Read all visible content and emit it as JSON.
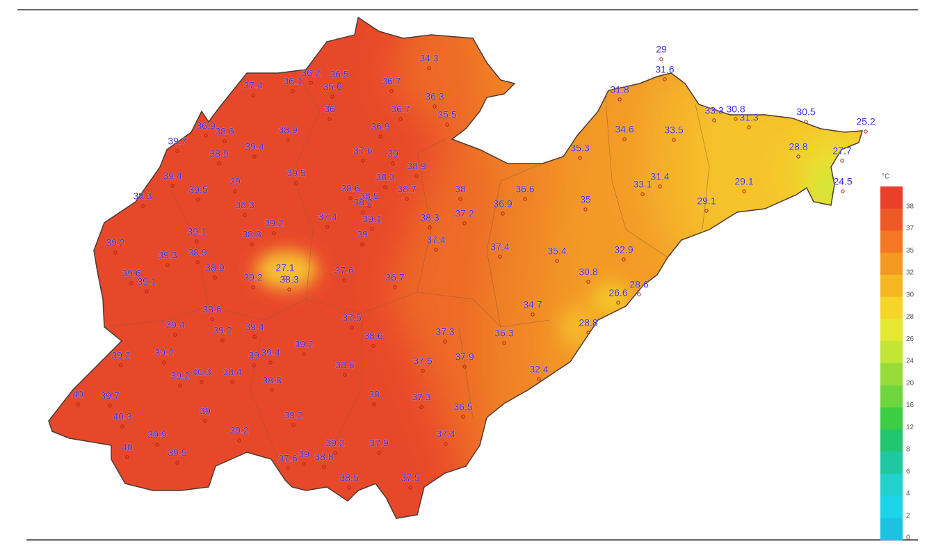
{
  "temperatures": [
    36.2,
    36.5,
    37.4,
    36.1,
    35.6,
    36.7,
    34.3,
    36.3,
    36,
    36.7,
    35.5,
    36.9,
    38.6,
    38.9,
    36.9,
    39.7,
    38.9,
    39.4,
    37.6,
    39,
    38.9,
    35.3,
    31.8,
    29,
    31.6,
    33.3,
    30.8,
    31.3,
    30.5,
    25.2,
    34.6,
    33.5,
    28.8,
    27.7,
    39.4,
    39.5,
    38.3,
    39.5,
    39,
    38.6,
    38.7,
    38,
    36.6,
    33.1,
    31.4,
    29.1,
    24.5,
    38.3,
    38.5,
    38.3,
    38.2,
    35,
    29.1,
    36.9,
    37.4,
    39.1,
    38.3,
    37.2,
    39.2,
    39.1,
    38.8,
    39,
    39.2,
    38.9,
    37.4,
    37.4,
    35.4,
    32.9,
    39.3,
    38.9,
    27.1,
    37.6,
    39.6,
    39.1,
    39.2,
    38.3,
    36.7,
    30.8,
    28.6,
    26.6,
    38.6,
    34.7,
    37.5,
    28.8,
    39.4,
    39.2,
    39.4,
    37.3,
    36.3,
    38.6,
    39.2,
    39.2,
    39.2,
    39.4,
    39,
    37.6,
    37.9,
    38.6,
    32.4,
    39.2,
    40.3,
    38.4,
    38.8,
    40,
    39.7,
    38,
    37.3,
    40.3,
    39,
    36.5,
    39.2,
    39.9,
    39.2,
    37.4,
    40,
    39.5,
    39.2,
    37.9,
    37.6,
    39,
    38.8,
    38.5,
    37.5
  ],
  "legend": {
    "unit": "°C",
    "ticks": [
      38,
      37,
      35,
      32,
      30,
      28,
      26,
      24,
      20,
      16,
      12,
      8,
      6,
      4,
      2,
      0
    ],
    "colors": [
      "#e8402a",
      "#ee5a26",
      "#f27822",
      "#f49a22",
      "#f5b822",
      "#f5d52a",
      "#e4e832",
      "#c2e636",
      "#98dc3a",
      "#6cd63c",
      "#3ccd42",
      "#22c670",
      "#20c8a2",
      "#22d0cc",
      "#1ed4ea",
      "#1cc2e2"
    ]
  }
}
